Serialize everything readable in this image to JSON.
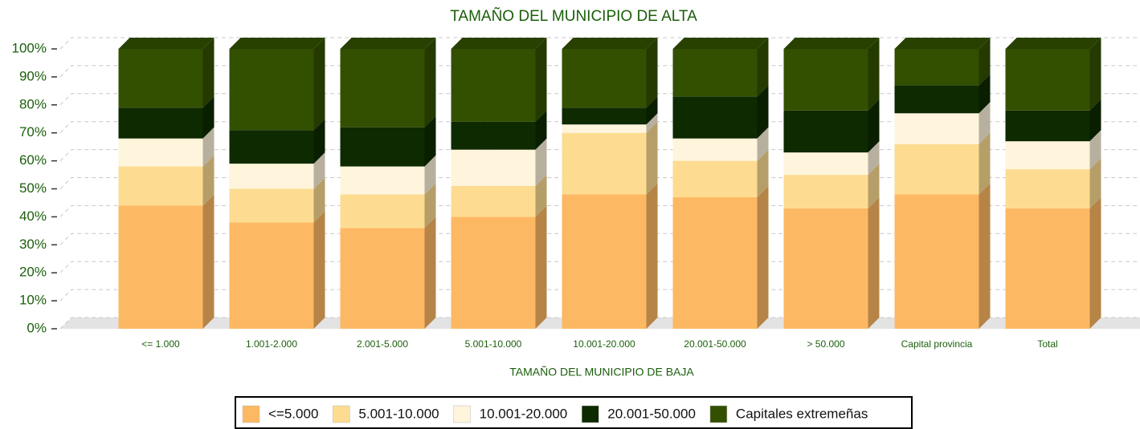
{
  "chart_data": {
    "type": "stacked_bar_100",
    "title": "TAMAÑO DEL MUNICIPIO DE ALTA",
    "x_label": "TAMAÑO DEL MUNICIPIO DE BAJA",
    "categories": [
      "<= 1.000",
      "1.001-2.000",
      "2.001-5.000",
      "5.001-10.000",
      "10.001-20.000",
      "20.001-50.000",
      "> 50.000",
      "Capital provincia",
      "Total"
    ],
    "series": [
      {
        "name": "<=5.000",
        "color": "#fdb863",
        "values": [
          44,
          38,
          36,
          40,
          48,
          47,
          43,
          48,
          43
        ]
      },
      {
        "name": "5.001-10.000",
        "color": "#fddc91",
        "values": [
          14,
          12,
          12,
          11,
          22,
          13,
          12,
          18,
          14
        ]
      },
      {
        "name": "10.001-20.000",
        "color": "#fff4dc",
        "values": [
          10,
          9,
          10,
          13,
          3,
          8,
          8,
          11,
          10
        ]
      },
      {
        "name": "20.001-50.000",
        "color": "#0e2a00",
        "values": [
          11,
          12,
          14,
          10,
          6,
          15,
          15,
          10,
          11
        ]
      },
      {
        "name": "Capitales extremeñas",
        "color": "#325000",
        "values": [
          21,
          29,
          28,
          26,
          21,
          17,
          22,
          13,
          22
        ]
      }
    ],
    "ylim": [
      0,
      100
    ],
    "yticks": [
      {
        "value": 0,
        "label": "0%"
      },
      {
        "value": 10,
        "label": "10%"
      },
      {
        "value": 20,
        "label": "20%"
      },
      {
        "value": 30,
        "label": "30%"
      },
      {
        "value": 40,
        "label": "40%"
      },
      {
        "value": 50,
        "label": "50%"
      },
      {
        "value": 60,
        "label": "60%"
      },
      {
        "value": 70,
        "label": "70%"
      },
      {
        "value": 80,
        "label": "80%"
      },
      {
        "value": 90,
        "label": "90%"
      },
      {
        "value": 100,
        "label": "100%"
      }
    ],
    "grid": true,
    "legend": "bottom"
  }
}
